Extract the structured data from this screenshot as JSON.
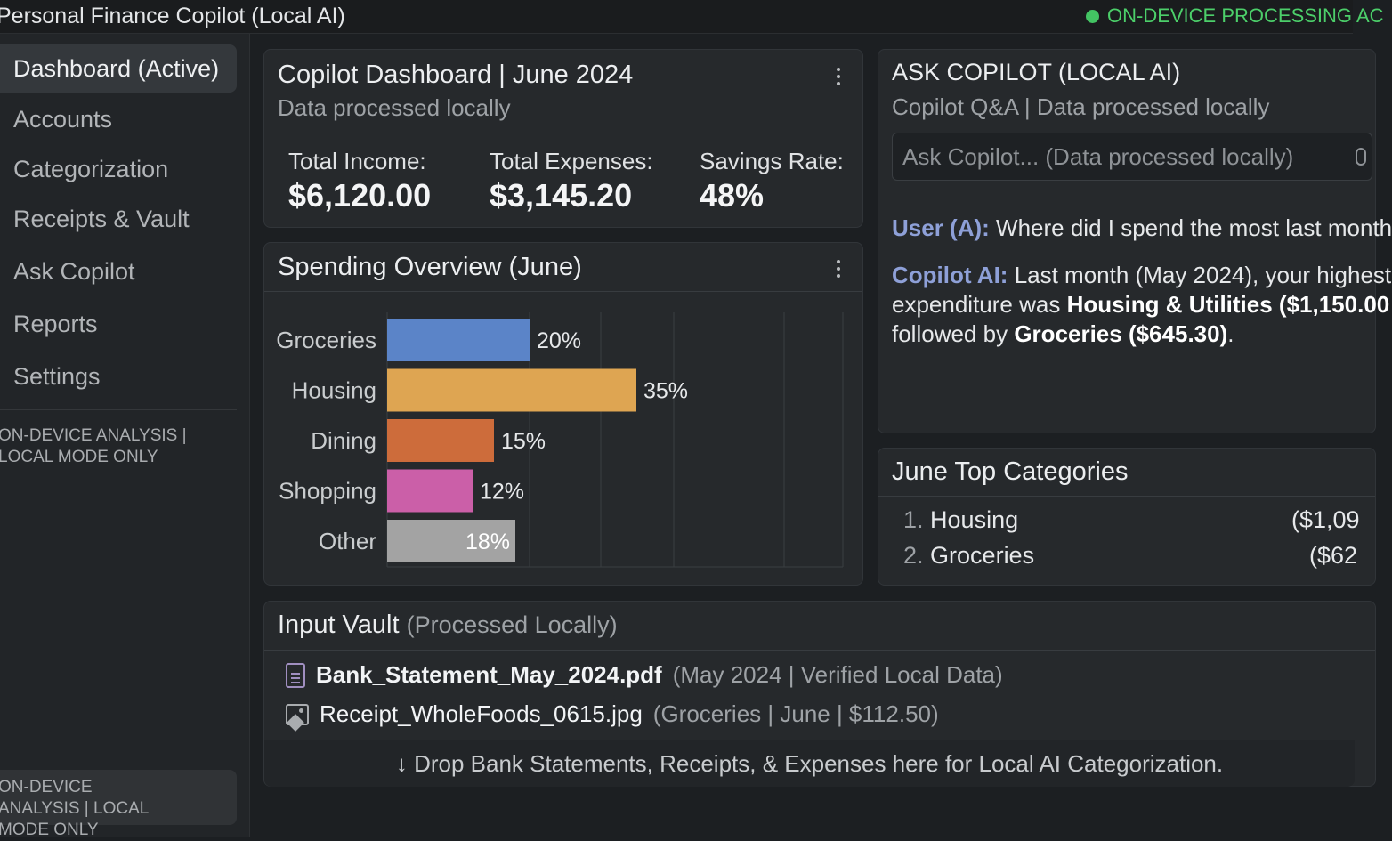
{
  "app": {
    "title": "Personal Finance Copilot (Local AI)",
    "status": "ON-DEVICE PROCESSING AC"
  },
  "sidebar": {
    "items": [
      {
        "label": "Dashboard (Active)",
        "active": true
      },
      {
        "label": "Accounts"
      },
      {
        "label": "Categorization"
      },
      {
        "label": "Receipts & Vault"
      },
      {
        "label": "Ask Copilot"
      },
      {
        "label": "Reports"
      },
      {
        "label": "Settings"
      }
    ],
    "note_top": "ON-DEVICE ANALYSIS | LOCAL MODE ONLY",
    "note_bottom": "ON-DEVICE ANALYSIS | LOCAL MODE ONLY"
  },
  "dashboard": {
    "title": "Copilot Dashboard | June 2024",
    "subtitle": "Data processed locally",
    "stats": [
      {
        "label": "Total Income:",
        "value": "$6,120.00"
      },
      {
        "label": "Total Expenses:",
        "value": "$3,145.20"
      },
      {
        "label": "Savings Rate:",
        "value": "48%"
      }
    ]
  },
  "spending": {
    "title": "Spending Overview (June)"
  },
  "chart_data": {
    "type": "bar",
    "orientation": "horizontal",
    "categories": [
      "Groceries",
      "Housing",
      "Dining",
      "Shopping",
      "Other"
    ],
    "values": [
      20,
      35,
      15,
      12,
      18
    ],
    "labels": [
      "20%",
      "35%",
      "15%",
      "12%",
      "18%"
    ],
    "colors": [
      "#5b84c8",
      "#dea552",
      "#cd6c3b",
      "#cb5fa8",
      "#a3a3a3"
    ],
    "grid": true
  },
  "ask": {
    "title": "ASK COPILOT (LOCAL AI)",
    "subtitle": "Copilot Q&A | Data processed locally",
    "placeholder": "Ask Copilot... (Data processed locally)",
    "user_label": "User (A):",
    "user_text": "Where did I spend the most last month",
    "ai_label": "Copilot AI:",
    "ai_line1": "Last month (May 2024), your highest",
    "ai_line2_pre": "expenditure was",
    "ai_line2_bold": "Housing & Utilities ($1,150.00",
    "ai_line3_pre": "followed by",
    "ai_line3_bold": "Groceries ($645.30)",
    "ai_line3_post": "."
  },
  "top_categories": {
    "title": "June Top Categories",
    "items": [
      {
        "num": "1.",
        "name": "Housing",
        "value": "($1,09"
      },
      {
        "num": "2.",
        "name": "Groceries",
        "value": "($62"
      }
    ]
  },
  "vault": {
    "title": "Input Vault",
    "title_note": "(Processed Locally)",
    "files": [
      {
        "name": "Bank_Statement_May_2024.pdf",
        "meta": "(May 2024 | Verified Local Data)",
        "icon": "document-icon"
      },
      {
        "name": "Receipt_WholeFoods_0615.jpg",
        "meta": "(Groceries | June | $112.50)",
        "icon": "image-icon"
      }
    ],
    "drop_text": "↓ Drop Bank Statements, Receipts, & Expenses here for Local AI Categorization."
  }
}
